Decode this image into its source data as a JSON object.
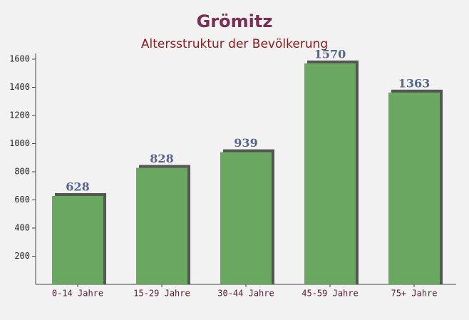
{
  "chart_data": {
    "type": "bar",
    "title": "Grömitz",
    "subtitle": "Altersstruktur der Bevölkerung",
    "categories": [
      "0-14 Jahre",
      "15-29 Jahre",
      "30-44 Jahre",
      "45-59 Jahre",
      "75+ Jahre"
    ],
    "values": [
      628,
      828,
      939,
      1570,
      1363
    ],
    "color": "#6aa862",
    "ylim": [
      0,
      1600
    ],
    "yticks": [
      200,
      400,
      600,
      800,
      1000,
      1200,
      1400,
      1600
    ]
  }
}
